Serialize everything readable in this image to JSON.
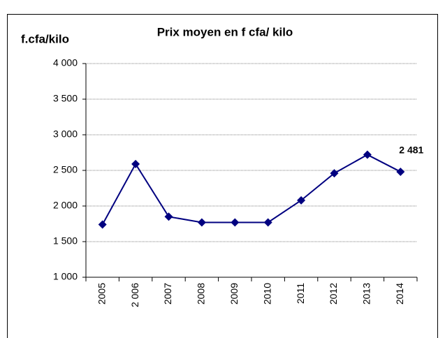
{
  "chart_data": {
    "type": "line",
    "title": "Prix moyen en f cfa/ kilo",
    "y_label": "f.cfa/kilo",
    "categories": [
      "2005",
      "2 006",
      "2007",
      "2008",
      "2009",
      "2010",
      "2011",
      "2012",
      "2013",
      "2014"
    ],
    "values": [
      1740,
      2590,
      1850,
      1770,
      1770,
      1770,
      2080,
      2460,
      2720,
      2481
    ],
    "value_labels": [
      null,
      null,
      null,
      null,
      null,
      null,
      null,
      null,
      null,
      "2 481"
    ],
    "color": "#000080",
    "ylim": [
      1000,
      4000
    ],
    "yticks": [
      {
        "value": 1000,
        "label": "1 000"
      },
      {
        "value": 1500,
        "label": "1 500"
      },
      {
        "value": 2000,
        "label": "2 000"
      },
      {
        "value": 2500,
        "label": "2 500"
      },
      {
        "value": 3000,
        "label": "3 000"
      },
      {
        "value": 3500,
        "label": "3 500"
      },
      {
        "value": 4000,
        "label": "4 000"
      }
    ],
    "grid": true
  }
}
